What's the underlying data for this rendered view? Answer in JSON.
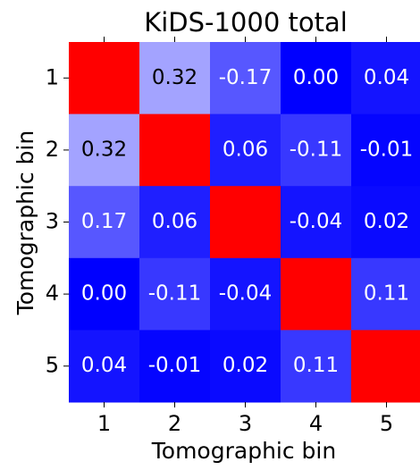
{
  "chart_data": {
    "type": "heatmap",
    "title": "KiDS-1000 total",
    "x_label": "Tomographic bin",
    "y_label": "Tomographic bin",
    "categories": [
      "1",
      "2",
      "3",
      "4",
      "5"
    ],
    "y_categories": [
      "1",
      "2",
      "3",
      "4",
      "5"
    ],
    "values": [
      [
        1,
        0.32,
        -0.17,
        0.0,
        0.04
      ],
      [
        0.32,
        1,
        0.06,
        -0.11,
        -0.01
      ],
      [
        0.17,
        0.06,
        1,
        -0.04,
        0.02
      ],
      [
        0.0,
        -0.11,
        -0.04,
        1,
        0.11
      ],
      [
        0.04,
        -0.01,
        0.02,
        0.11,
        1
      ]
    ],
    "value_labels": [
      [
        null,
        "0.32",
        "-0.17",
        "0.00",
        "0.04"
      ],
      [
        "0.32",
        null,
        "0.06",
        "-0.11",
        "-0.01"
      ],
      [
        "0.17",
        "0.06",
        null,
        "-0.04",
        "0.02"
      ],
      [
        "0.00",
        "-0.11",
        "-0.04",
        null,
        "0.11"
      ],
      [
        "0.04",
        "-0.01",
        "0.02",
        "0.11",
        null
      ]
    ],
    "colormap": [
      "#0000ff",
      "#ffffff",
      "#ff0000"
    ],
    "clim": [
      0,
      1
    ],
    "color_by_abs": true
  }
}
